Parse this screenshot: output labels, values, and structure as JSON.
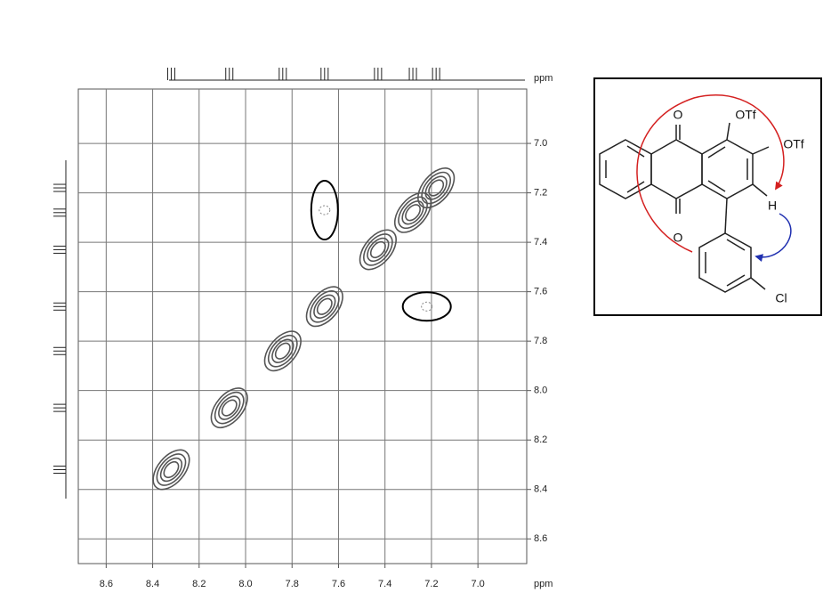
{
  "chart_data": {
    "type": "contour",
    "x_label": "ppm",
    "y_label": "ppm",
    "x": [
      8.32,
      8.07,
      7.84,
      7.66,
      7.43,
      7.28,
      7.18
    ],
    "values": [
      8.32,
      8.07,
      7.84,
      7.66,
      7.43,
      7.28,
      7.18
    ],
    "cross_x": [
      7.66,
      7.22
    ],
    "cross_y": [
      7.27,
      7.66
    ],
    "color": "#555555",
    "highlight_color": "#000000",
    "xlim": [
      8.72,
      6.79
    ],
    "ylim": [
      6.78,
      8.7
    ],
    "xticks": [
      8.6,
      8.4,
      8.2,
      {
        "value": 8,
        "label": "8.0"
      },
      7.8,
      7.6,
      7.4,
      7.2,
      {
        "value": 7,
        "label": "7.0"
      }
    ],
    "yticks": [
      {
        "value": 7,
        "label": "7.0"
      },
      7.2,
      7.4,
      7.6,
      7.8,
      {
        "value": 8,
        "label": "8.0"
      },
      8.2,
      8.4,
      8.6
    ],
    "grid": true
  },
  "structure": {
    "labels": [
      "O",
      "OTf",
      "OTf",
      "H",
      "O",
      "Cl"
    ]
  }
}
